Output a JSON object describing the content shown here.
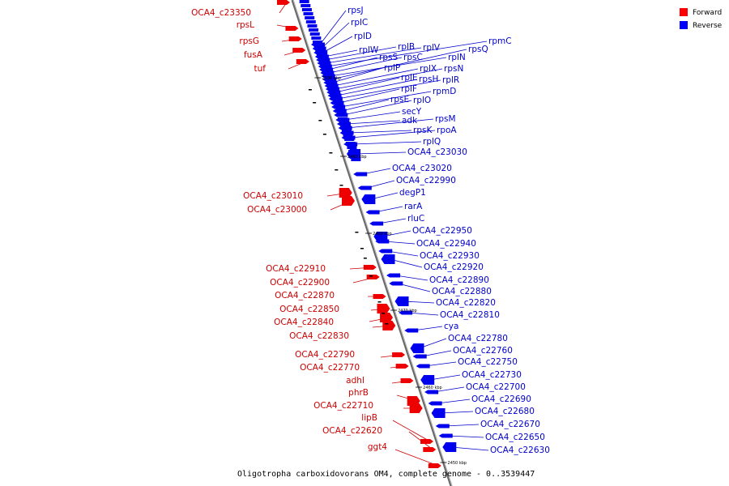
{
  "caption": "Oligotropha carboxidovorans OM4, complete genome - 0..3539447",
  "legend": [
    {
      "label": "Forward",
      "color": "#ff0000"
    },
    {
      "label": "Reverse",
      "color": "#0000ff"
    }
  ],
  "ticks": [
    "2500 kbp",
    "2490 kbp",
    "2480 kbp",
    "2470 kbp",
    "2460 kbp",
    "2450 kbp"
  ],
  "forward_genes": [
    "OCA4_c23350",
    "rpsL",
    "rpsG",
    "fusA",
    "tuf",
    "OCA4_c23010",
    "OCA4_c23000",
    "OCA4_c22910",
    "OCA4_c22900",
    "OCA4_c22870",
    "OCA4_c22850",
    "OCA4_c22840",
    "OCA4_c22830",
    "OCA4_c22790",
    "OCA4_c22770",
    "adhI",
    "phrB",
    "OCA4_c22710",
    "lipB",
    "OCA4_c22620",
    "ggt4"
  ],
  "reverse_genes": [
    "rpsJ",
    "rplC",
    "rplD",
    "rplW",
    "rplB",
    "rplV",
    "rpmC",
    "rpsS",
    "rpsC",
    "rplN",
    "rpsQ",
    "rplP",
    "rplX",
    "rpsN",
    "rplE",
    "rpsH",
    "rplR",
    "rplF",
    "rpmD",
    "rpsE",
    "rplO",
    "secY",
    "adk",
    "rpsM",
    "rpsK",
    "rpoA",
    "rplQ",
    "OCA4_c23030",
    "OCA4_c23020",
    "OCA4_c22990",
    "degP1",
    "rarA",
    "rluC",
    "OCA4_c22950",
    "OCA4_c22940",
    "OCA4_c22930",
    "OCA4_c22920",
    "OCA4_c22890",
    "OCA4_c22880",
    "OCA4_c22820",
    "OCA4_c22810",
    "cya",
    "OCA4_c22780",
    "OCA4_c22760",
    "OCA4_c22750",
    "OCA4_c22730",
    "OCA4_c22700",
    "OCA4_c22690",
    "OCA4_c22680",
    "OCA4_c22670",
    "OCA4_c22650",
    "OCA4_c22630"
  ]
}
